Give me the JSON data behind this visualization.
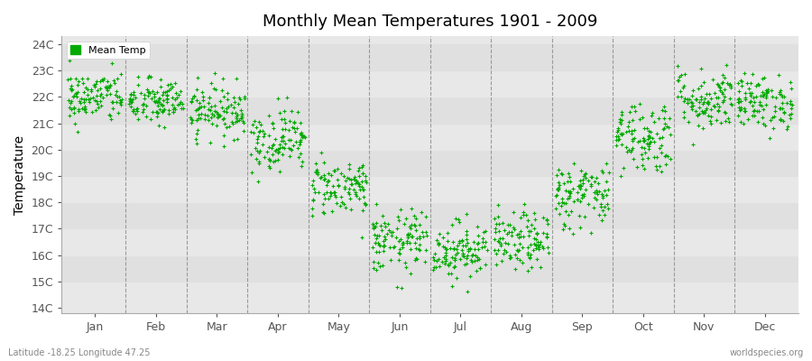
{
  "title": "Monthly Mean Temperatures 1901 - 2009",
  "ylabel": "Temperature",
  "xlabel_labels": [
    "Jan",
    "Feb",
    "Mar",
    "Apr",
    "May",
    "Jun",
    "Jul",
    "Aug",
    "Sep",
    "Oct",
    "Nov",
    "Dec"
  ],
  "ytick_labels": [
    "14C",
    "15C",
    "16C",
    "17C",
    "18C",
    "19C",
    "20C",
    "21C",
    "22C",
    "23C",
    "24C"
  ],
  "ytick_values": [
    14,
    15,
    16,
    17,
    18,
    19,
    20,
    21,
    22,
    23,
    24
  ],
  "ylim": [
    13.8,
    24.3
  ],
  "legend_label": "Mean Temp",
  "dot_color": "#00aa00",
  "dot_size": 8,
  "bg_color": "#ffffff",
  "plot_bg_color": "#e8e8e8",
  "band_light": "#eeeeee",
  "band_dark": "#dddddd",
  "subtitle": "Latitude -18.25 Longitude 47.25",
  "watermark": "worldspecies.org",
  "monthly_means": [
    22.0,
    21.8,
    21.5,
    20.4,
    18.6,
    16.5,
    16.2,
    16.5,
    18.3,
    20.5,
    21.9,
    21.8
  ],
  "monthly_stds": [
    0.5,
    0.45,
    0.5,
    0.6,
    0.55,
    0.6,
    0.55,
    0.55,
    0.65,
    0.7,
    0.6,
    0.52
  ],
  "n_years": 109,
  "seed": 42,
  "vline_color": "#888888",
  "hband_colors": [
    "#e8e8e8",
    "#e0e0e0"
  ]
}
